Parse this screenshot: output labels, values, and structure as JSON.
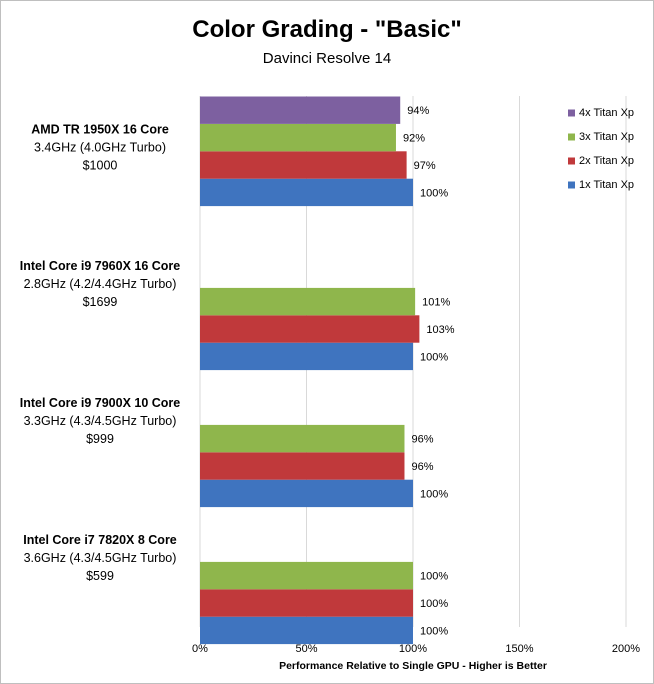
{
  "chart_data": {
    "type": "bar",
    "orientation": "horizontal",
    "title": "Color Grading - \"Basic\"",
    "subtitle": "Davinci Resolve 14",
    "xlabel": "Performance  Relative to  Single GPU - Higher is Better",
    "ylabel": "",
    "xlim": [
      0,
      200
    ],
    "x_ticks": [
      "0%",
      "50%",
      "100%",
      "150%",
      "200%"
    ],
    "x_tick_values": [
      0,
      50,
      100,
      150,
      200
    ],
    "grid": "vertical",
    "legend_position": "top-right",
    "value_suffix": "%",
    "categories": [
      {
        "lines": [
          "AMD TR 1950X 16 Core",
          "3.4GHz (4.0GHz Turbo)",
          "$1000"
        ]
      },
      {
        "lines": [
          "Intel Core i9 7960X 16 Core",
          "2.8GHz (4.2/4.4GHz Turbo)",
          "$1699"
        ]
      },
      {
        "lines": [
          "Intel Core i9 7900X 10 Core",
          "3.3GHz (4.3/4.5GHz Turbo)",
          "$999"
        ]
      },
      {
        "lines": [
          "Intel Core i7 7820X 8 Core",
          "3.6GHz (4.3/4.5GHz Turbo)",
          "$599"
        ]
      }
    ],
    "series": [
      {
        "name": "4x Titan Xp",
        "color": "#7d60a0",
        "values": [
          94,
          null,
          null,
          null
        ]
      },
      {
        "name": "3x Titan Xp",
        "color": "#8fb64c",
        "values": [
          92,
          101,
          96,
          100
        ]
      },
      {
        "name": "2x Titan Xp",
        "color": "#c0393b",
        "values": [
          97,
          103,
          96,
          100
        ]
      },
      {
        "name": "1x Titan Xp",
        "color": "#3f74bf",
        "values": [
          100,
          100,
          100,
          100
        ]
      }
    ]
  }
}
